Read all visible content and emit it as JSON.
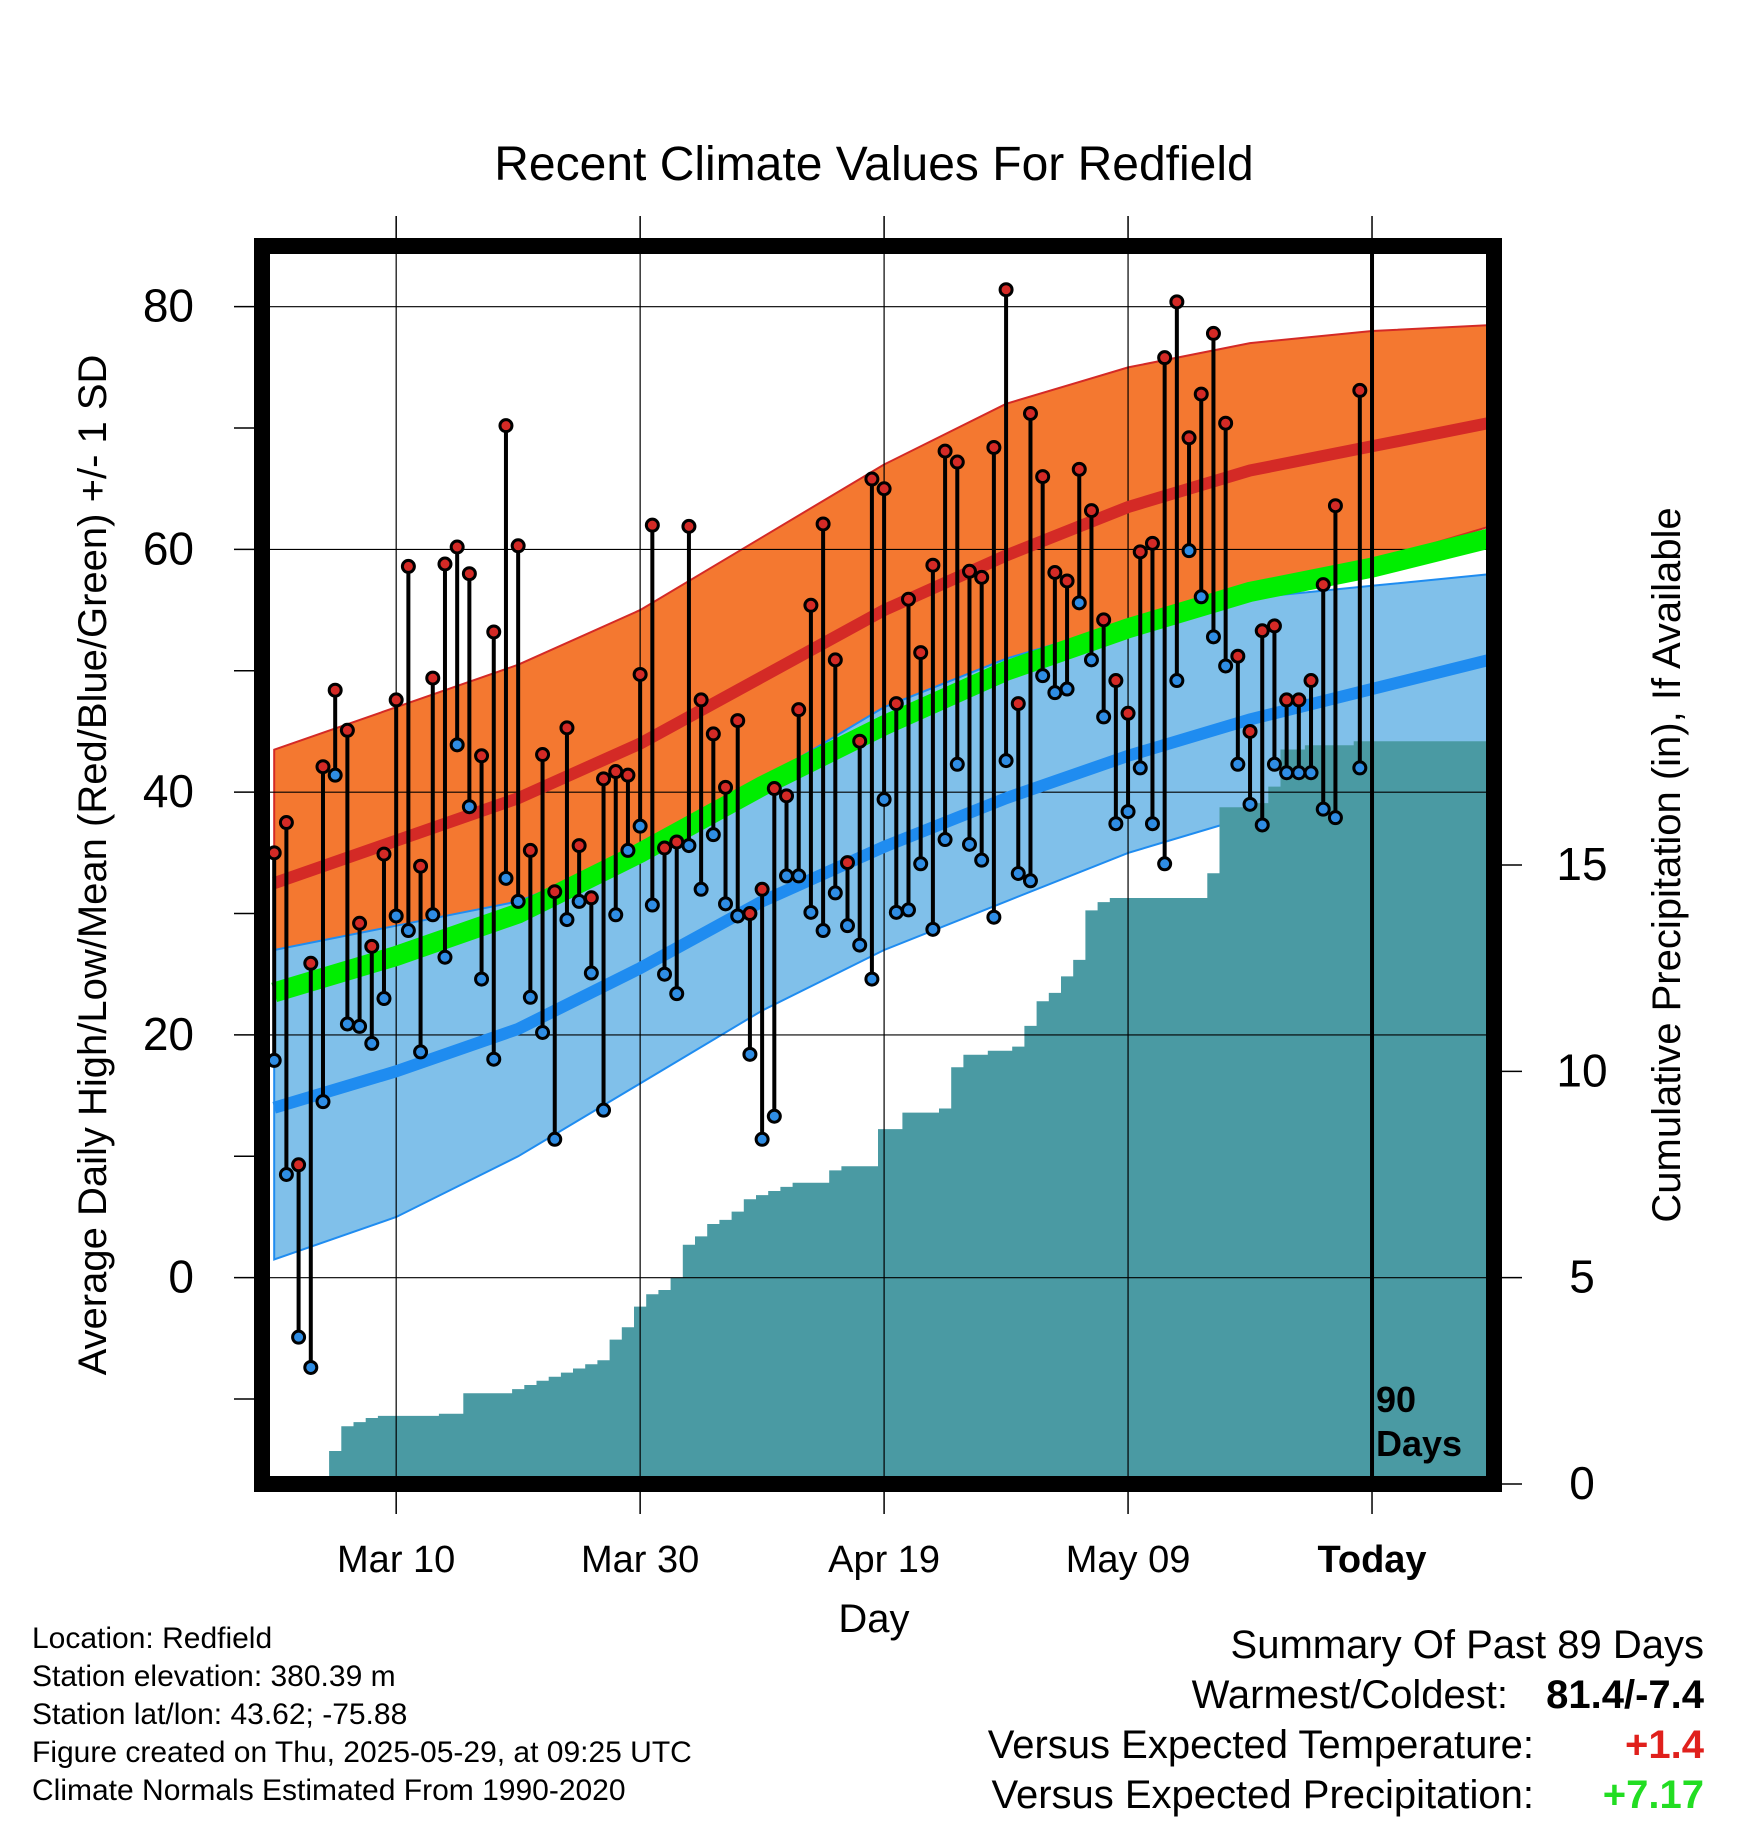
{
  "chart_data": {
    "type": "line",
    "title": "Recent Climate Values For Redfield",
    "xlabel": "Day",
    "ylabel": "Average Daily High/Low/Mean (Red/Blue/Green) +/- 1 SD",
    "y2label": "Cumulative Precipitation (in), If Available",
    "xlim": [
      -1,
      100
    ],
    "ylim": [
      -17,
      85
    ],
    "y2lim": [
      0,
      30
    ],
    "x_ticks": [
      {
        "x": 10,
        "label": "Mar 10"
      },
      {
        "x": 30,
        "label": "Mar 30"
      },
      {
        "x": 50,
        "label": "Apr 19"
      },
      {
        "x": 70,
        "label": "May 09"
      },
      {
        "x": 90,
        "label": "Today"
      }
    ],
    "y_ticks": [
      0,
      20,
      40,
      60,
      80
    ],
    "y2_ticks": [
      0,
      5,
      10,
      15
    ],
    "grid": true,
    "today_marker": {
      "x": 90,
      "label_line1": "90",
      "label_line2": "Days"
    },
    "colors": {
      "normal_high": "#d42a26",
      "normal_high_band": "#f47830",
      "normal_low": "#1f8cf0",
      "normal_low_band": "#80c0ea",
      "normal_mean": "#00ee00",
      "precipitation": "#4a9aa3",
      "high_dot": "#d42a26",
      "low_dot": "#2f8de4"
    },
    "normals": {
      "days": [
        0,
        10,
        20,
        30,
        40,
        50,
        60,
        70,
        80,
        90,
        100
      ],
      "high_mean": [
        32.5,
        36,
        39.5,
        44,
        49.5,
        55,
        59.5,
        63.5,
        66.5,
        68.5,
        70.5
      ],
      "high_upper": [
        43.5,
        47,
        50.5,
        55,
        61,
        67,
        72,
        75,
        77,
        78,
        78.5
      ],
      "high_lower": [
        21.5,
        25,
        28.5,
        33,
        38,
        43,
        47.5,
        52,
        56,
        59,
        62
      ],
      "low_mean": [
        14,
        17,
        20.5,
        25.5,
        31,
        35.5,
        39.5,
        43,
        46,
        48.5,
        51
      ],
      "low_upper": [
        27,
        29,
        31,
        35,
        41,
        47,
        51,
        54,
        56,
        57,
        58
      ],
      "low_lower": [
        1.5,
        5,
        10,
        16,
        22,
        27,
        31,
        35,
        38,
        41,
        44
      ],
      "mean": [
        23.5,
        26.5,
        30,
        35,
        40.5,
        45.5,
        50,
        53.5,
        56.5,
        58.5,
        61
      ]
    },
    "series": [
      {
        "name": "High",
        "values": [
          35,
          37.5,
          9.3,
          25.9,
          42.1,
          48.4,
          45.1,
          29.2,
          27.3,
          34.9,
          47.6,
          58.6,
          33.9,
          49.4,
          58.8,
          60.2,
          58.0,
          43.0,
          53.2,
          70.2,
          60.3,
          35.2,
          43.1,
          31.8,
          45.3,
          35.6,
          31.3,
          41.1,
          41.7,
          41.4,
          49.7,
          62.0,
          35.4,
          35.9,
          61.9,
          47.6,
          44.8,
          40.4,
          45.9,
          30.0,
          32.0,
          40.3,
          39.7,
          46.8,
          55.4,
          62.1,
          50.9,
          34.2,
          44.2,
          65.8,
          65.0,
          47.3,
          55.9,
          51.5,
          58.7,
          68.1,
          67.2,
          58.2,
          57.7,
          68.4,
          81.4,
          47.3,
          71.2,
          66.0,
          58.1,
          57.4,
          66.6,
          63.2,
          54.2,
          49.2,
          46.5,
          59.8,
          60.5,
          75.8,
          80.4,
          69.2,
          72.8,
          77.8,
          70.4,
          51.2,
          45.0,
          53.3,
          53.7,
          47.6,
          47.6,
          49.2,
          57.1,
          63.6,
          null,
          73.1
        ]
      },
      {
        "name": "Low",
        "values": [
          17.9,
          8.5,
          -4.9,
          -7.4,
          14.5,
          41.4,
          20.9,
          20.7,
          19.3,
          23.0,
          29.8,
          28.6,
          18.6,
          29.9,
          26.4,
          43.9,
          38.8,
          24.6,
          18.0,
          32.9,
          31.0,
          23.1,
          20.2,
          11.4,
          29.5,
          31.0,
          25.1,
          13.8,
          29.9,
          35.2,
          37.2,
          30.7,
          25.0,
          23.4,
          35.6,
          32.0,
          36.5,
          30.8,
          29.8,
          18.4,
          11.4,
          13.3,
          33.1,
          33.1,
          30.1,
          28.6,
          31.7,
          29.0,
          27.4,
          24.6,
          39.4,
          30.1,
          30.3,
          34.1,
          28.7,
          36.1,
          42.3,
          35.7,
          34.4,
          29.7,
          42.6,
          33.3,
          32.7,
          49.6,
          48.2,
          48.5,
          55.6,
          50.9,
          46.2,
          37.4,
          38.4,
          42.0,
          37.4,
          34.1,
          49.2,
          59.9,
          56.1,
          52.8,
          50.4,
          42.3,
          39.0,
          37.3,
          42.3,
          41.6,
          41.6,
          41.6,
          38.6,
          37.9,
          null,
          42.0
        ]
      },
      {
        "name": "Cumulative Precipitation",
        "values": [
          null,
          null,
          null,
          null,
          null,
          0.8,
          1.4,
          1.5,
          1.6,
          1.65,
          1.65,
          1.65,
          1.65,
          1.65,
          1.7,
          1.7,
          2.2,
          2.2,
          2.2,
          2.2,
          2.3,
          2.4,
          2.5,
          2.6,
          2.7,
          2.8,
          2.9,
          3.0,
          3.5,
          3.8,
          4.3,
          4.6,
          4.7,
          5.0,
          5.8,
          6.0,
          6.3,
          6.4,
          6.6,
          6.9,
          7.0,
          7.1,
          7.2,
          7.3,
          7.3,
          7.3,
          7.6,
          7.7,
          7.7,
          7.7,
          8.6,
          8.6,
          9.0,
          9.0,
          9.0,
          9.1,
          10.1,
          10.4,
          10.4,
          10.5,
          10.5,
          10.6,
          11.1,
          11.7,
          11.9,
          12.3,
          12.7,
          13.9,
          14.1,
          14.2,
          14.2,
          14.2,
          14.2,
          14.2,
          14.2,
          14.2,
          14.2,
          14.8,
          16.4,
          16.4,
          16.4,
          16.5,
          16.9,
          17.8,
          17.8,
          17.9,
          17.9,
          17.9,
          17.9,
          18.0,
          18.0,
          18.0,
          18.0,
          18.0,
          18.0,
          18.0,
          18.0,
          18.0,
          18.0,
          18.0
        ]
      }
    ]
  },
  "info": {
    "location": "Location: Redfield",
    "elevation": "Station elevation: 380.39 m",
    "latlon": "Station lat/lon: 43.62; -75.88",
    "created": "Figure created on Thu, 2025-05-29, at 09:25 UTC",
    "normals": "Climate Normals Estimated From 1990-2020"
  },
  "summary": {
    "title": "Summary Of Past 89 Days",
    "warm_cold_label": "Warmest/Coldest:",
    "warm_cold_value": "81.4/-7.4",
    "temp_label": "Versus Expected Temperature:",
    "temp_value": "+1.4",
    "temp_color": "#e0201c",
    "precip_label": "Versus Expected Precipitation:",
    "precip_value": "+7.17",
    "precip_color": "#22dd22"
  }
}
